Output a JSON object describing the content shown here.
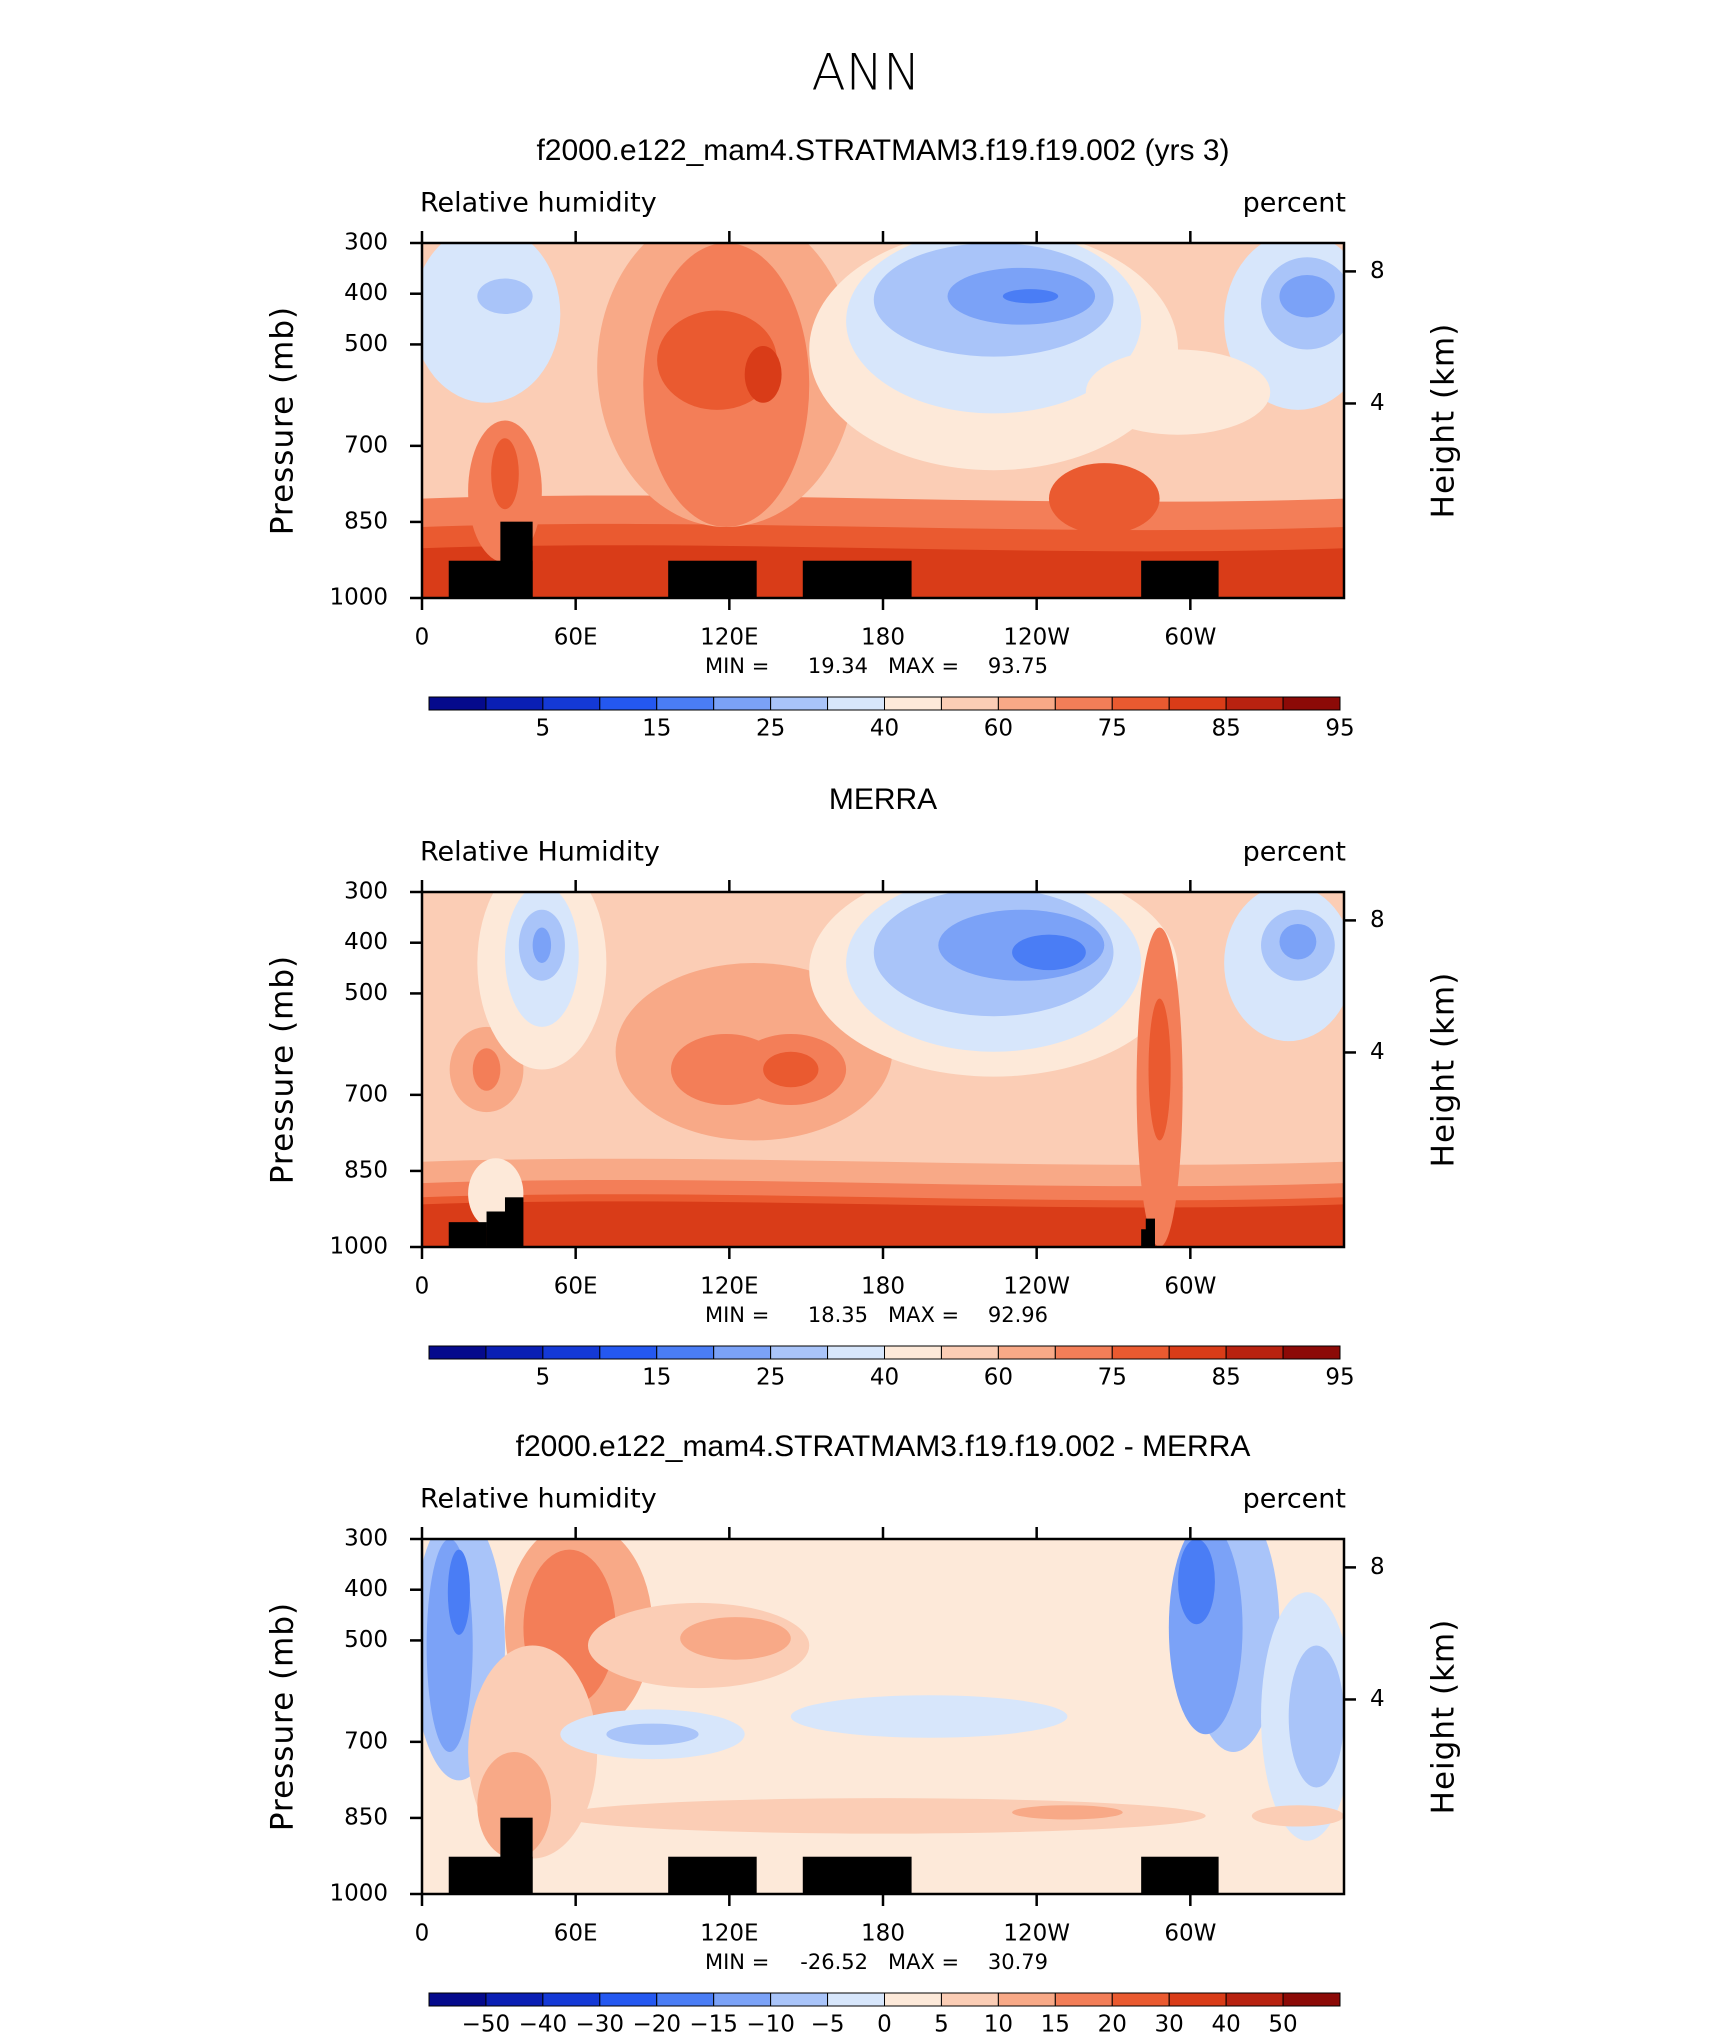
{
  "suptitle": "ANN",
  "chart_data": [
    {
      "type": "contour",
      "title": "f2000.e122_mam4.STRATMAM3.f19.f19.002 (yrs 3)",
      "left_label": "Relative humidity",
      "right_label": "percent",
      "ylabel": "Pressure (mb)",
      "y2label": "Height (km)",
      "xlim": [
        0,
        360
      ],
      "xticks": [
        0,
        {
          "value": 60,
          "label": "60E"
        },
        {
          "value": 120,
          "label": "120E"
        },
        180,
        {
          "value": 240,
          "label": "120W"
        },
        {
          "value": 300,
          "label": "60W"
        }
      ],
      "ylim": [
        1000,
        300
      ],
      "yticks": [
        300,
        400,
        500,
        700,
        850,
        1000
      ],
      "y2ticks": [
        8,
        4
      ],
      "min_label": "MIN =",
      "min": 19.34,
      "max_label": "MAX =",
      "max": 93.75,
      "colorbar": {
        "colors": [
          "#050a8c",
          "#0a1fb4",
          "#1439d6",
          "#2458f0",
          "#4a7df5",
          "#7ba2f7",
          "#a9c4f9",
          "#d7e6fb",
          "#fde9d9",
          "#fbcdb5",
          "#f8a987",
          "#f37e58",
          "#ea5a30",
          "#d93c18",
          "#b82210",
          "#8c0a07"
        ],
        "ticks": [
          5,
          15,
          25,
          40,
          60,
          75,
          85,
          95
        ],
        "label_every": 2
      }
    },
    {
      "type": "contour",
      "title": "MERRA",
      "left_label": "Relative Humidity",
      "right_label": "percent",
      "ylabel": "Pressure (mb)",
      "y2label": "Height (km)",
      "xlim": [
        0,
        360
      ],
      "xticks": [
        0,
        {
          "value": 60,
          "label": "60E"
        },
        {
          "value": 120,
          "label": "120E"
        },
        180,
        {
          "value": 240,
          "label": "120W"
        },
        {
          "value": 300,
          "label": "60W"
        }
      ],
      "ylim": [
        1000,
        300
      ],
      "yticks": [
        300,
        400,
        500,
        700,
        850,
        1000
      ],
      "y2ticks": [
        8,
        4
      ],
      "min_label": "MIN =",
      "min": 18.35,
      "max_label": "MAX =",
      "max": 92.96,
      "colorbar": {
        "colors": [
          "#050a8c",
          "#0a1fb4",
          "#1439d6",
          "#2458f0",
          "#4a7df5",
          "#7ba2f7",
          "#a9c4f9",
          "#d7e6fb",
          "#fde9d9",
          "#fbcdb5",
          "#f8a987",
          "#f37e58",
          "#ea5a30",
          "#d93c18",
          "#b82210",
          "#8c0a07"
        ],
        "ticks": [
          5,
          15,
          25,
          40,
          60,
          75,
          85,
          95
        ],
        "label_every": 2
      }
    },
    {
      "type": "contour",
      "title": "f2000.e122_mam4.STRATMAM3.f19.f19.002 - MERRA",
      "left_label": "Relative humidity",
      "right_label": "percent",
      "ylabel": "Pressure (mb)",
      "y2label": "Height (km)",
      "xlim": [
        0,
        360
      ],
      "xticks": [
        0,
        {
          "value": 60,
          "label": "60E"
        },
        {
          "value": 120,
          "label": "120E"
        },
        180,
        {
          "value": 240,
          "label": "120W"
        },
        {
          "value": 300,
          "label": "60W"
        }
      ],
      "ylim": [
        1000,
        300
      ],
      "yticks": [
        300,
        400,
        500,
        700,
        850,
        1000
      ],
      "y2ticks": [
        8,
        4
      ],
      "min_label": "MIN =",
      "min": -26.52,
      "max_label": "MAX =",
      "max": 30.79,
      "colorbar": {
        "colors": [
          "#050a8c",
          "#0a1fb4",
          "#1439d6",
          "#2458f0",
          "#4a7df5",
          "#7ba2f7",
          "#a9c4f9",
          "#d7e6fb",
          "#fde9d9",
          "#fbcdb5",
          "#f8a987",
          "#f37e58",
          "#ea5a30",
          "#d93c18",
          "#b82210",
          "#8c0a07"
        ],
        "ticks": [
          {
            "value": -50,
            "label": "−50"
          },
          {
            "value": -40,
            "label": "−40"
          },
          {
            "value": -30,
            "label": "−30"
          },
          {
            "value": -20,
            "label": "−20"
          },
          {
            "value": -15,
            "label": "−15"
          },
          {
            "value": -10,
            "label": "−10"
          },
          {
            "value": -5,
            "label": "−5"
          },
          0,
          5,
          10,
          15,
          20,
          30,
          40,
          50
        ],
        "label_every": 1
      }
    }
  ]
}
